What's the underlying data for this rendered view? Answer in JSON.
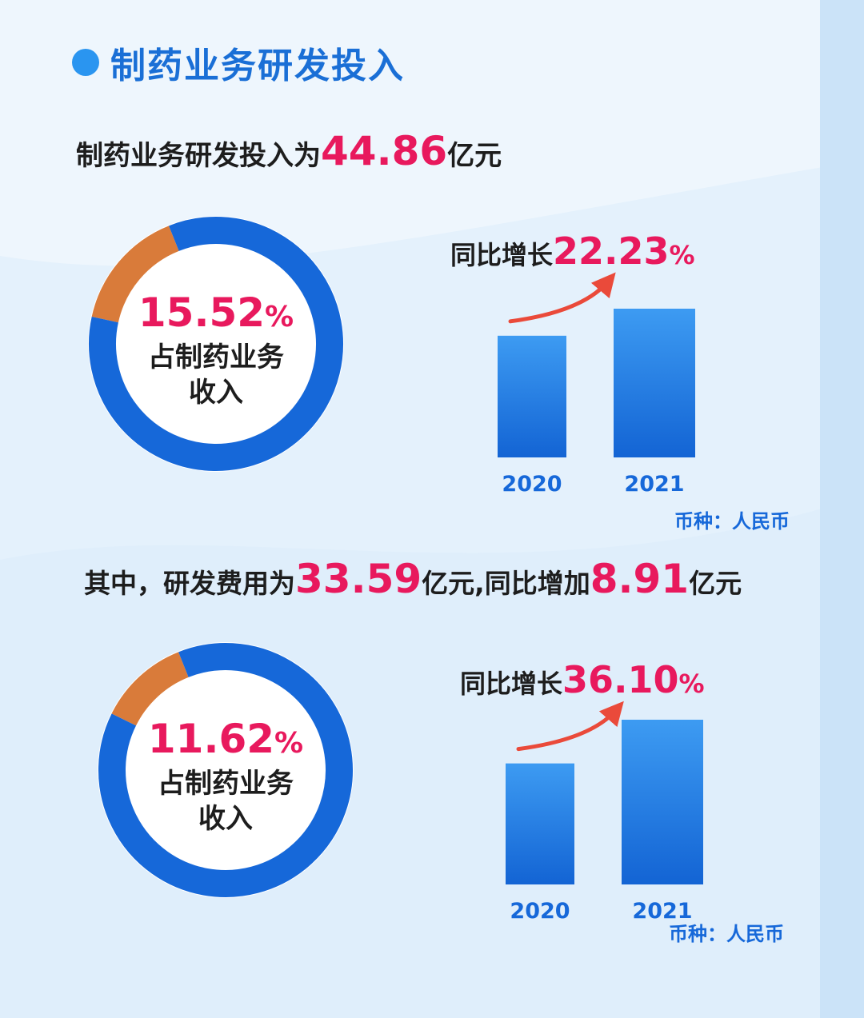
{
  "heading": {
    "title": "制药业务研发投入"
  },
  "line1": {
    "prefix": "制药业务研发投入为",
    "amount": "44.86",
    "suffix": "亿元"
  },
  "line2": {
    "prefix": "其中，研发费用为",
    "amount1": "33.59",
    "mid": "亿元,同比增加",
    "amount2": "8.91",
    "suffix": "亿元"
  },
  "colors": {
    "blue": "#1668d9",
    "orange": "#d97b3a",
    "highlight": "#e8195d",
    "accent": "#2a95f0"
  },
  "chart_data": [
    {
      "type": "pie",
      "slices": [
        {
          "label": "占制药业务收入",
          "value": 15.52
        },
        {
          "label": "",
          "value": 84.48
        }
      ],
      "center_value": "15.52%",
      "center_label_line1": "占制药业务",
      "center_label_line2": "收入"
    },
    {
      "type": "bar",
      "categories": [
        "2020",
        "2021"
      ],
      "values": [
        36.7,
        44.86
      ],
      "growth_label": "同比增长",
      "growth_value": "22.23%",
      "currency_note": "币种：人民币"
    },
    {
      "type": "pie",
      "slices": [
        {
          "label": "占制药业务收入",
          "value": 11.62
        },
        {
          "label": "",
          "value": 88.38
        }
      ],
      "center_value": "11.62%",
      "center_label_line1": "占制药业务",
      "center_label_line2": "收入"
    },
    {
      "type": "bar",
      "categories": [
        "2020",
        "2021"
      ],
      "values": [
        24.68,
        33.59
      ],
      "growth_label": "同比增长",
      "growth_value": "36.10%",
      "currency_note": "币种：人民币"
    }
  ]
}
